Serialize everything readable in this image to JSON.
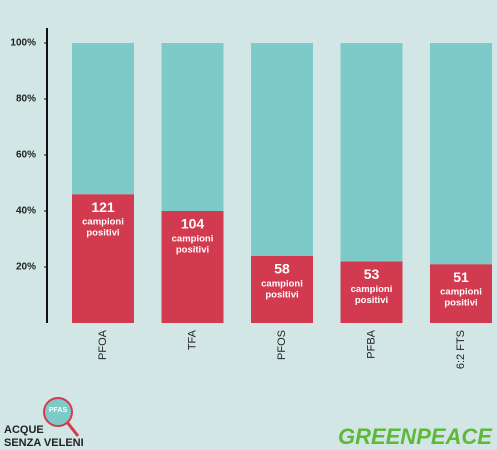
{
  "chart_data": {
    "type": "stacked_bar",
    "categories": [
      "PFOA",
      "TFA",
      "PFOS",
      "PFBA",
      "6:2 FTS"
    ],
    "series": [
      {
        "color": "#d23a4f",
        "values": [
          46,
          40,
          24,
          22,
          21
        ]
      },
      {
        "color": "#7ecac8",
        "values": [
          54,
          60,
          76,
          78,
          79
        ]
      }
    ],
    "positive_samples": [
      121,
      104,
      58,
      53,
      51
    ],
    "sample_label_lines": [
      "campioni",
      "positivi"
    ],
    "ylim": [
      0,
      100
    ],
    "yticks": [
      {
        "value": 20,
        "label": "20%"
      },
      {
        "value": 40,
        "label": "40%"
      },
      {
        "value": 60,
        "label": "60%"
      },
      {
        "value": 80,
        "label": "80%"
      },
      {
        "value": 100,
        "label": "100%"
      }
    ]
  },
  "logos": {
    "campaign": [
      "ACQUE",
      "SENZA VELENI"
    ],
    "badge": "PFAS",
    "brand": "GREENPEACE"
  }
}
